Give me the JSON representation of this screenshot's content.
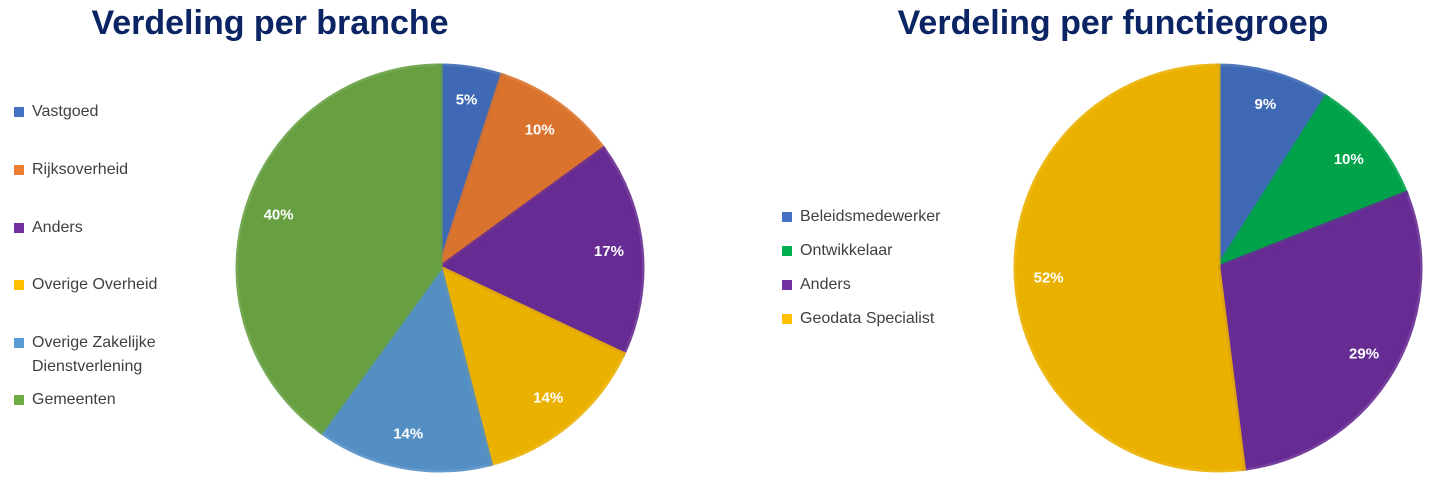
{
  "chart_data": [
    {
      "type": "pie",
      "title": "Verdeling per branche",
      "categories": [
        "Vastgoed",
        "Rijksoverheid",
        "Anders",
        "Overige Overheid",
        "Overige Zakelijke Dienstverlening",
        "Gemeenten"
      ],
      "values": [
        5,
        10,
        17,
        14,
        14,
        40
      ],
      "value_labels": [
        "5%",
        "10%",
        "17%",
        "14%",
        "14%",
        "40%"
      ],
      "colors": [
        "#4472c4",
        "#ed7d31",
        "#7030a0",
        "#ffc000",
        "#5b9bd5",
        "#70ad47"
      ],
      "legend": "left"
    },
    {
      "type": "pie",
      "title": "Verdeling per functiegroep",
      "categories": [
        "Beleidsmedewerker",
        "Ontwikkelaar",
        "Anders",
        "Geodata Specialist"
      ],
      "values": [
        9,
        10,
        29,
        52
      ],
      "value_labels": [
        "9%",
        "10%",
        "29%",
        "52%"
      ],
      "colors": [
        "#4472c4",
        "#00b050",
        "#7030a0",
        "#ffc000"
      ],
      "legend": "left"
    }
  ]
}
